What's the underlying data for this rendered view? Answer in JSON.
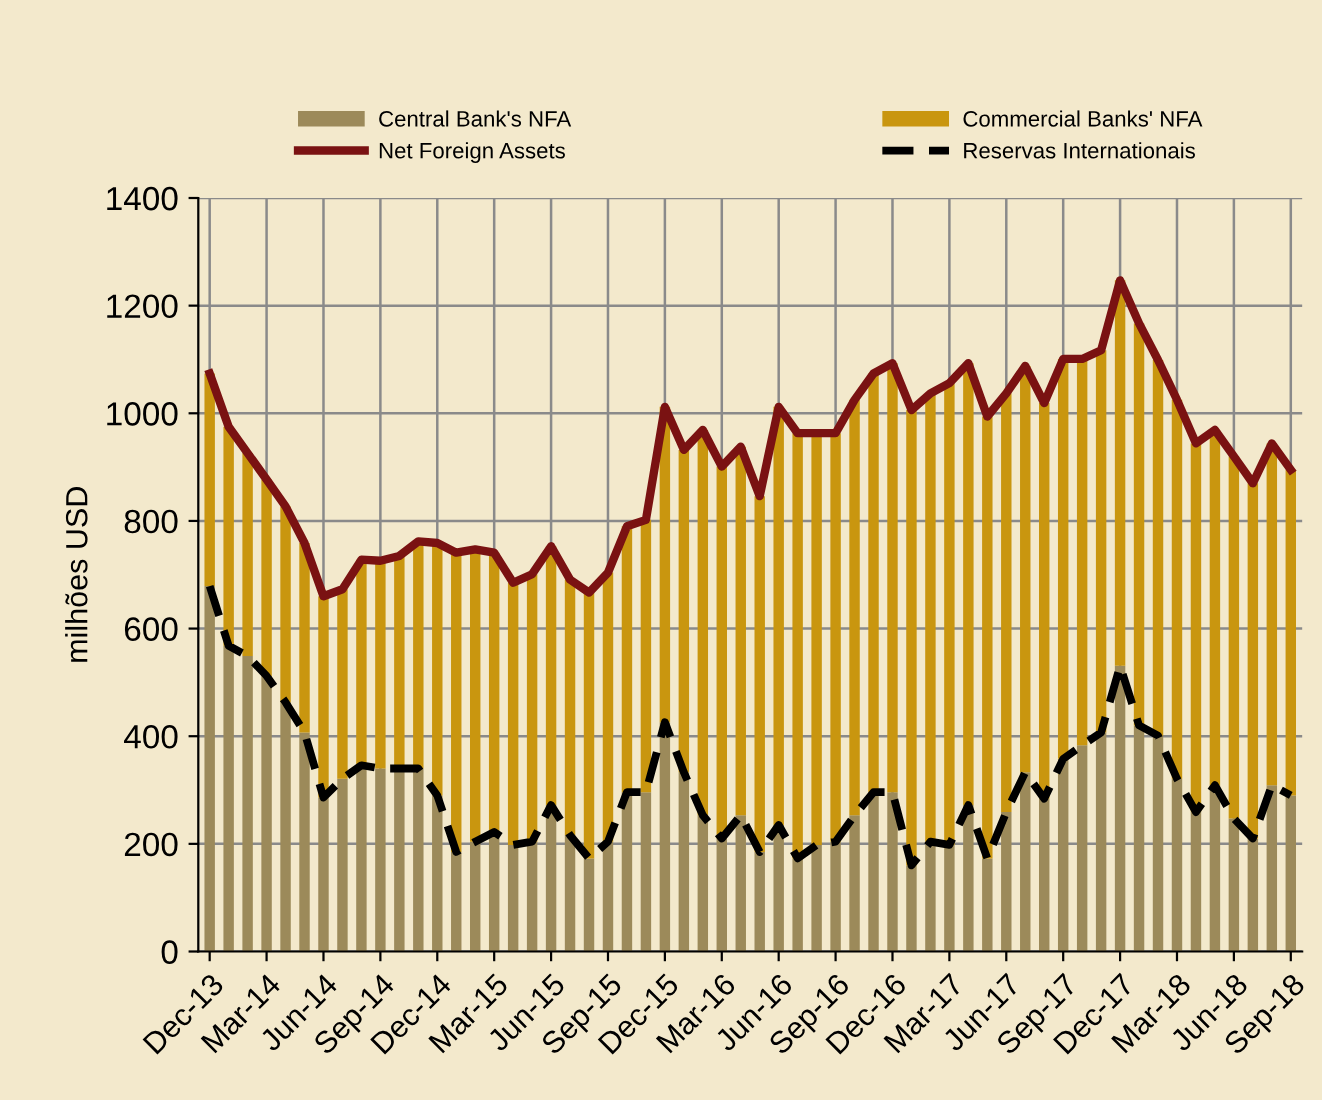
{
  "chart_data": {
    "type": "bar",
    "stacked": true,
    "ylabel": "milhões USD",
    "categories": [
      "Dec-13",
      null,
      null,
      "Mar-14",
      null,
      null,
      "Jun-14",
      null,
      null,
      "Sep-14",
      null,
      null,
      "Dec-14",
      null,
      null,
      "Mar-15",
      null,
      null,
      "Jun-15",
      null,
      null,
      "Sep-15",
      null,
      null,
      "Dec-15",
      null,
      null,
      "Mar-16",
      null,
      null,
      "Jun-16",
      null,
      null,
      "Sep-16",
      null,
      null,
      "Dec-16",
      null,
      null,
      "Mar-17",
      null,
      null,
      "Jun-17",
      null,
      null,
      "Sep-17",
      null,
      null,
      "Dec-17",
      null,
      null,
      "Mar-18",
      null,
      null,
      "Jun-18",
      null,
      null,
      "Sep-18"
    ],
    "series": [
      {
        "name": "Central Bank's NFA",
        "color": "#9c8a5a",
        "values": [
          679,
          568,
          549,
          512,
          463,
          407,
          286,
          321,
          346,
          340,
          340,
          340,
          290,
          185,
          204,
          222,
          198,
          204,
          272,
          216,
          173,
          204,
          296,
          296,
          426,
          333,
          253,
          210,
          253,
          185,
          235,
          173,
          198,
          204,
          253,
          296,
          296,
          160,
          204,
          198,
          272,
          173,
          259,
          333,
          284,
          358,
          383,
          407,
          531,
          420,
          401,
          321,
          259,
          309,
          247,
          210,
          309,
          290
        ]
      },
      {
        "name": "Commercial Banks' NFA",
        "color": "#c9960f",
        "values": [
          395,
          407,
          377,
          365,
          364,
          352,
          374,
          352,
          382,
          386,
          395,
          422,
          469,
          556,
          543,
          519,
          487,
          497,
          481,
          475,
          494,
          500,
          494,
          506,
          586,
          599,
          716,
          691,
          685,
          661,
          777,
          790,
          765,
          759,
          772,
          778,
          797,
          846,
          833,
          858,
          821,
          821,
          778,
          755,
          735,
          743,
          718,
          710,
          716,
          747,
          698,
          704,
          685,
          660,
          673,
          660,
          635,
          605
        ]
      },
      {
        "name": "Net Foreign Assets",
        "type": "line",
        "color": "#7a1212",
        "line_style": "solid",
        "values": [
          1074,
          975,
          926,
          877,
          827,
          759,
          660,
          673,
          728,
          726,
          735,
          762,
          759,
          741,
          747,
          741,
          685,
          701,
          753,
          691,
          667,
          704,
          790,
          802,
          1012,
          932,
          969,
          901,
          938,
          846,
          1012,
          963,
          963,
          963,
          1025,
          1074,
          1093,
          1006,
          1037,
          1056,
          1093,
          994,
          1037,
          1088,
          1019,
          1101,
          1101,
          1117,
          1247,
          1167,
          1099,
          1025,
          944,
          969,
          920,
          870,
          944,
          895
        ]
      },
      {
        "name": "Reservas Internationais",
        "type": "line",
        "color": "#000000",
        "line_style": "dashed",
        "values": [
          679,
          568,
          549,
          512,
          463,
          407,
          286,
          321,
          346,
          340,
          340,
          340,
          290,
          185,
          204,
          222,
          198,
          204,
          272,
          216,
          173,
          204,
          296,
          296,
          426,
          333,
          253,
          210,
          253,
          185,
          235,
          173,
          198,
          204,
          253,
          296,
          296,
          160,
          204,
          198,
          272,
          173,
          259,
          333,
          284,
          358,
          383,
          407,
          531,
          420,
          401,
          321,
          259,
          309,
          247,
          210,
          309,
          290
        ]
      }
    ],
    "ylim": [
      0,
      1400
    ],
    "yticks": [
      0,
      200,
      400,
      600,
      800,
      1000,
      1200,
      1400
    ],
    "grid": true,
    "legend": "top",
    "marker": "none"
  }
}
